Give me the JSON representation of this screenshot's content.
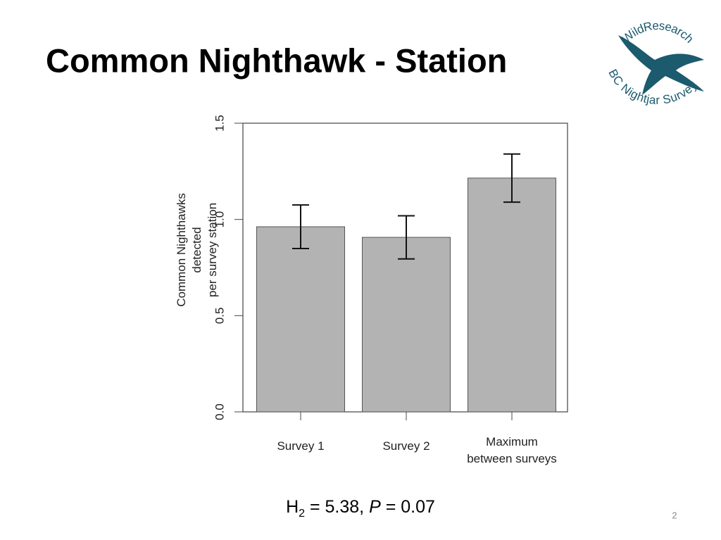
{
  "chart_data": {
    "type": "bar",
    "title": "Common Nighthawk - Station",
    "ylabel": "Common Nighthawks detected\nper survey station",
    "categories": [
      "Survey 1",
      "Survey 2",
      "Maximum\nbetween surveys"
    ],
    "values": [
      0.962,
      0.907,
      1.215
    ],
    "errors": [
      0.113,
      0.112,
      0.125
    ],
    "color": "#b3b3b3",
    "ylim": [
      0,
      1.5
    ],
    "yticks": [
      {
        "value": 0,
        "label": "0.0"
      },
      0.5,
      {
        "value": 1,
        "label": "1.0"
      },
      1.5
    ],
    "annotation": {
      "stat": "H",
      "df": "2",
      "stat_value": " = 5.38, ",
      "p": "P",
      "p_value": " = 0.07"
    }
  },
  "page_number": "2",
  "logo": {
    "top": "WildResearch",
    "bottom": "BC Nightjar Survey"
  }
}
